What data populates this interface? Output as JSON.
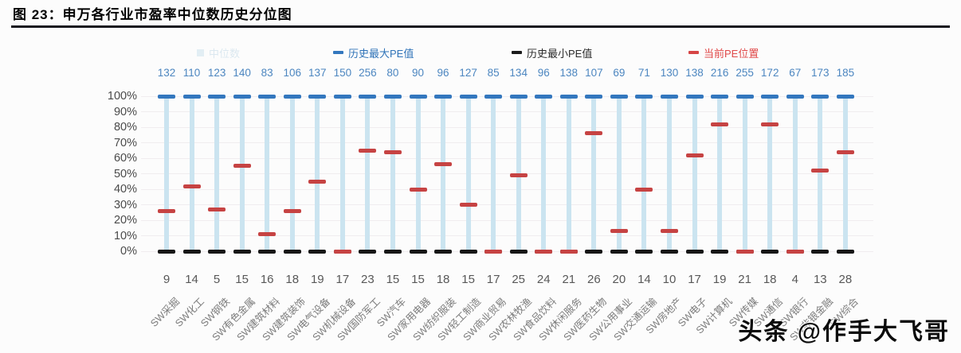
{
  "figure": {
    "title": "图 23：申万各行业市盈率中位数历史分位图"
  },
  "legend": {
    "items": [
      {
        "label": "中位数",
        "marker": "square",
        "color": "#b9d7e8",
        "faded": true
      },
      {
        "label": "历史最大PE值",
        "marker": "dash",
        "color": "#3377be",
        "faded": false
      },
      {
        "label": "历史最小PE值",
        "marker": "dash",
        "color": "#1a1a1a",
        "faded": false
      },
      {
        "label": "当前PE位置",
        "marker": "dash",
        "color": "#d64545",
        "faded": false
      }
    ]
  },
  "chart_data": {
    "type": "bar",
    "subtype": "percentile-range-with-markers",
    "categories": [
      "SW采掘",
      "SW化工",
      "SW钢铁",
      "SW有色金属",
      "SW建筑材料",
      "SW建筑装饰",
      "SW电气设备",
      "SW机械设备",
      "SW国防军工",
      "SW汽车",
      "SW家用电器",
      "SW纺织服装",
      "SW轻工制造",
      "SW商业贸易",
      "SW农林牧渔",
      "SW食品饮料",
      "SW休闲服务",
      "SW医药生物",
      "SW公用事业",
      "SW交通运输",
      "SW房地产",
      "SW电子",
      "SW计算机",
      "SW传媒",
      "SW通信",
      "SW银行",
      "SW非银金融",
      "SW综合"
    ],
    "series": [
      {
        "name": "历史最大PE值",
        "role": "top_labels",
        "values": [
          132,
          110,
          123,
          140,
          83,
          106,
          137,
          150,
          256,
          80,
          90,
          96,
          127,
          85,
          134,
          96,
          138,
          107,
          69,
          71,
          130,
          138,
          216,
          255,
          172,
          67,
          173,
          185
        ]
      },
      {
        "name": "历史最小PE值",
        "role": "bottom_labels",
        "values": [
          9,
          14,
          5,
          15,
          16,
          18,
          19,
          17,
          23,
          15,
          15,
          18,
          15,
          17,
          25,
          24,
          21,
          26,
          20,
          14,
          10,
          17,
          19,
          21,
          18,
          4,
          13,
          28
        ]
      },
      {
        "name": "当前PE位置",
        "role": "percentile_markers",
        "values": [
          26,
          42,
          27,
          55,
          11,
          26,
          45,
          0,
          65,
          64,
          40,
          56,
          30,
          0,
          49,
          0,
          0,
          76,
          13,
          40,
          13,
          62,
          82,
          0,
          82,
          0,
          52,
          64
        ]
      }
    ],
    "yticks": [
      "100%",
      "90%",
      "80%",
      "70%",
      "60%",
      "50%",
      "40%",
      "30%",
      "20%",
      "10%",
      "0%"
    ],
    "ylim": [
      0,
      100
    ],
    "grid": true,
    "legend_position": "top",
    "colors": {
      "range_bar": "#cbe4f0",
      "max_dash": "#3377be",
      "min_dash": "#161616",
      "current_dash": "#c64343",
      "top_numbers": "#4c86c0",
      "bottom_numbers": "#585858"
    }
  },
  "watermark": {
    "text": "头条 @作手大飞哥"
  }
}
